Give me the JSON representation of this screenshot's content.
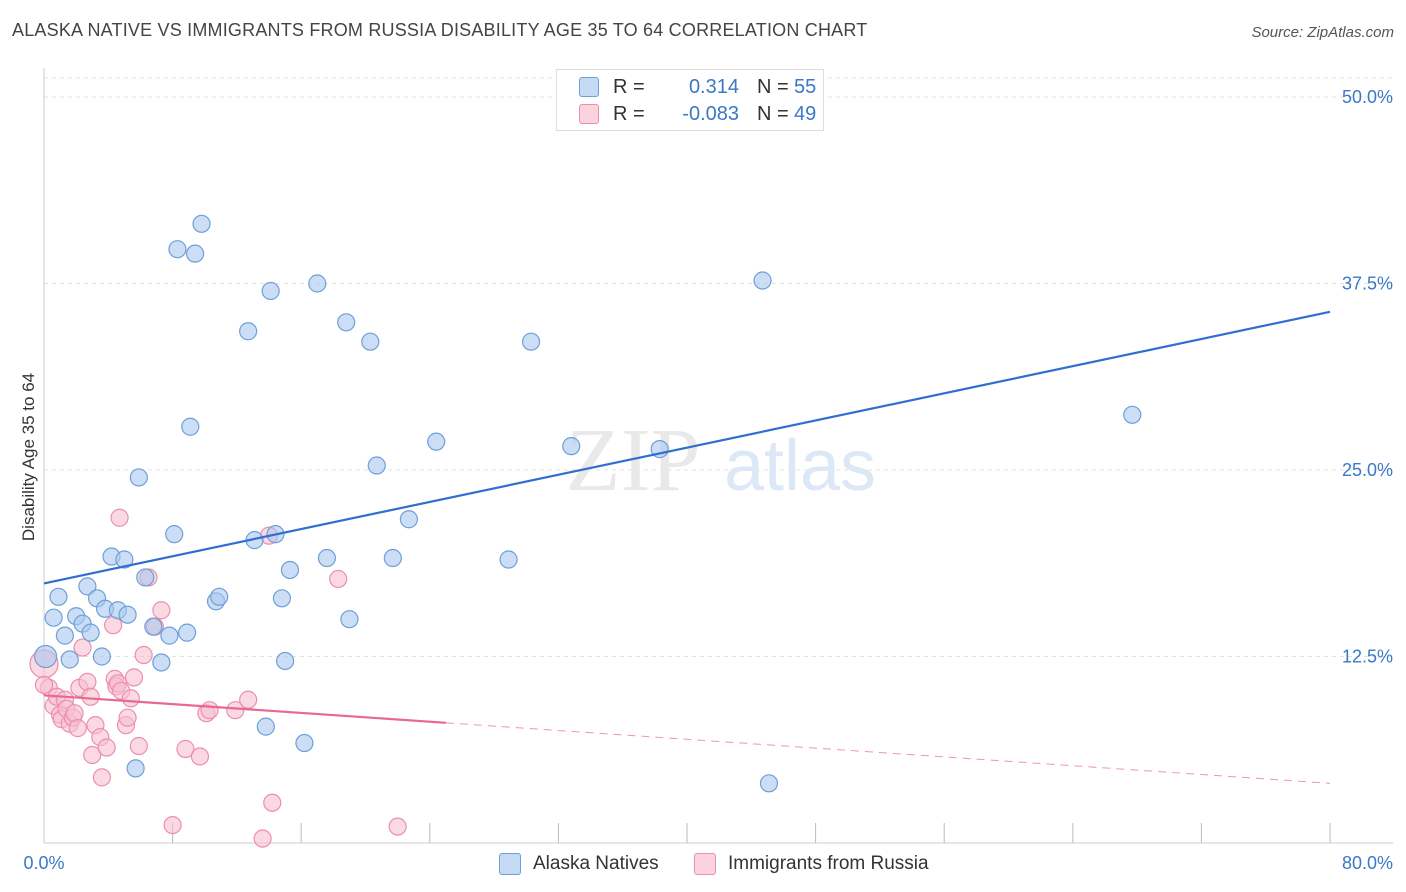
{
  "title": "ALASKA NATIVE VS IMMIGRANTS FROM RUSSIA DISABILITY AGE 35 TO 64 CORRELATION CHART",
  "source": "Source: ZipAtlas.com",
  "watermark": {
    "zip": "ZIP",
    "atlas": "atlas"
  },
  "legend_top": [
    {
      "r_label": "R =",
      "r_value": "0.314",
      "n_label": "N =",
      "n_value": "55"
    },
    {
      "r_label": "R =",
      "r_value": "-0.083",
      "n_label": "N =",
      "n_value": "49"
    }
  ],
  "colors": {
    "blue_fill": "#a9c8ee",
    "blue_stroke": "#6f9fd8",
    "blue_line": "#2f6fd0",
    "pink_fill": "#f6bfd0",
    "pink_stroke": "#eb8fae",
    "pink_line": "#e8688f",
    "grid": "#e2e2e2",
    "tick_label": "#3b78c6"
  },
  "chart_data": {
    "type": "scatter",
    "title": "ALASKA NATIVE VS IMMIGRANTS FROM RUSSIA DISABILITY AGE 35 TO 64 CORRELATION CHART",
    "ylabel": "Disability Age 35 to 64",
    "xlabel": "",
    "xlim": [
      0,
      80
    ],
    "ylim": [
      0,
      50
    ],
    "x_tick_labels": [
      "0.0%",
      "80.0%"
    ],
    "y_ticks": [
      12.5,
      25.0,
      37.5,
      50.0
    ],
    "y_tick_labels": [
      "12.5%",
      "25.0%",
      "37.5%",
      "50.0%"
    ],
    "grid": true,
    "legend_position": "top-center",
    "series": [
      {
        "name": "Alaska Natives",
        "r": 0.314,
        "n": 55,
        "trend": {
          "x": [
            0,
            80
          ],
          "y": [
            17.4,
            35.6
          ],
          "dashed_from": null
        },
        "points": [
          [
            0.1,
            12.5
          ],
          [
            0.6,
            15.1
          ],
          [
            0.9,
            16.5
          ],
          [
            1.3,
            13.9
          ],
          [
            1.6,
            12.3
          ],
          [
            2.0,
            15.2
          ],
          [
            2.4,
            14.7
          ],
          [
            2.7,
            17.2
          ],
          [
            2.9,
            14.1
          ],
          [
            3.3,
            16.4
          ],
          [
            3.6,
            12.5
          ],
          [
            3.8,
            15.7
          ],
          [
            4.2,
            19.2
          ],
          [
            4.6,
            15.6
          ],
          [
            5.0,
            19.0
          ],
          [
            5.2,
            15.3
          ],
          [
            5.7,
            5.0
          ],
          [
            5.9,
            24.5
          ],
          [
            6.3,
            17.8
          ],
          [
            6.8,
            14.5
          ],
          [
            7.3,
            12.1
          ],
          [
            7.8,
            13.9
          ],
          [
            8.1,
            20.7
          ],
          [
            8.3,
            39.8
          ],
          [
            8.9,
            14.1
          ],
          [
            9.1,
            27.9
          ],
          [
            9.4,
            39.5
          ],
          [
            9.8,
            41.5
          ],
          [
            10.7,
            16.2
          ],
          [
            10.9,
            16.5
          ],
          [
            12.7,
            34.3
          ],
          [
            13.1,
            20.3
          ],
          [
            13.8,
            7.8
          ],
          [
            14.1,
            37.0
          ],
          [
            14.4,
            20.7
          ],
          [
            14.8,
            16.4
          ],
          [
            15.0,
            12.2
          ],
          [
            15.3,
            18.3
          ],
          [
            16.2,
            6.7
          ],
          [
            17.0,
            37.5
          ],
          [
            17.6,
            19.1
          ],
          [
            18.8,
            34.9
          ],
          [
            19.0,
            15.0
          ],
          [
            20.3,
            33.6
          ],
          [
            20.7,
            25.3
          ],
          [
            21.7,
            19.1
          ],
          [
            22.7,
            21.7
          ],
          [
            24.4,
            26.9
          ],
          [
            28.9,
            19.0
          ],
          [
            30.3,
            33.6
          ],
          [
            32.8,
            26.6
          ],
          [
            38.3,
            26.4
          ],
          [
            44.7,
            37.7
          ],
          [
            45.1,
            4.0
          ],
          [
            67.7,
            28.7
          ]
        ]
      },
      {
        "name": "Immigrants from Russia",
        "r": -0.083,
        "n": 49,
        "trend": {
          "x": [
            0,
            80
          ],
          "y": [
            9.9,
            4.0
          ],
          "dashed_from": 25
        },
        "points": [
          [
            0.0,
            12.0
          ],
          [
            0.3,
            10.4
          ],
          [
            0.6,
            9.2
          ],
          [
            0.8,
            9.8
          ],
          [
            1.0,
            8.6
          ],
          [
            1.1,
            8.3
          ],
          [
            1.3,
            9.6
          ],
          [
            1.4,
            9.0
          ],
          [
            1.6,
            8.0
          ],
          [
            1.8,
            8.4
          ],
          [
            1.9,
            8.7
          ],
          [
            2.1,
            7.7
          ],
          [
            2.2,
            10.4
          ],
          [
            2.4,
            13.1
          ],
          [
            2.7,
            10.8
          ],
          [
            2.9,
            9.8
          ],
          [
            3.0,
            5.9
          ],
          [
            3.2,
            7.9
          ],
          [
            3.5,
            7.1
          ],
          [
            3.6,
            4.4
          ],
          [
            3.9,
            6.4
          ],
          [
            4.3,
            14.6
          ],
          [
            4.4,
            11.0
          ],
          [
            4.5,
            10.5
          ],
          [
            4.6,
            10.7
          ],
          [
            4.7,
            21.8
          ],
          [
            4.8,
            10.2
          ],
          [
            5.1,
            7.9
          ],
          [
            5.2,
            8.4
          ],
          [
            5.4,
            9.7
          ],
          [
            5.6,
            11.1
          ],
          [
            5.9,
            6.5
          ],
          [
            6.2,
            12.6
          ],
          [
            6.5,
            17.8
          ],
          [
            6.9,
            14.5
          ],
          [
            7.3,
            15.6
          ],
          [
            8.0,
            1.2
          ],
          [
            8.8,
            6.3
          ],
          [
            9.7,
            5.8
          ],
          [
            10.1,
            8.7
          ],
          [
            10.3,
            8.9
          ],
          [
            11.9,
            8.9
          ],
          [
            12.7,
            9.6
          ],
          [
            13.6,
            0.3
          ],
          [
            14.0,
            20.6
          ],
          [
            14.2,
            2.7
          ],
          [
            18.3,
            17.7
          ],
          [
            22.0,
            1.1
          ],
          [
            0.0,
            10.6
          ]
        ]
      }
    ]
  }
}
